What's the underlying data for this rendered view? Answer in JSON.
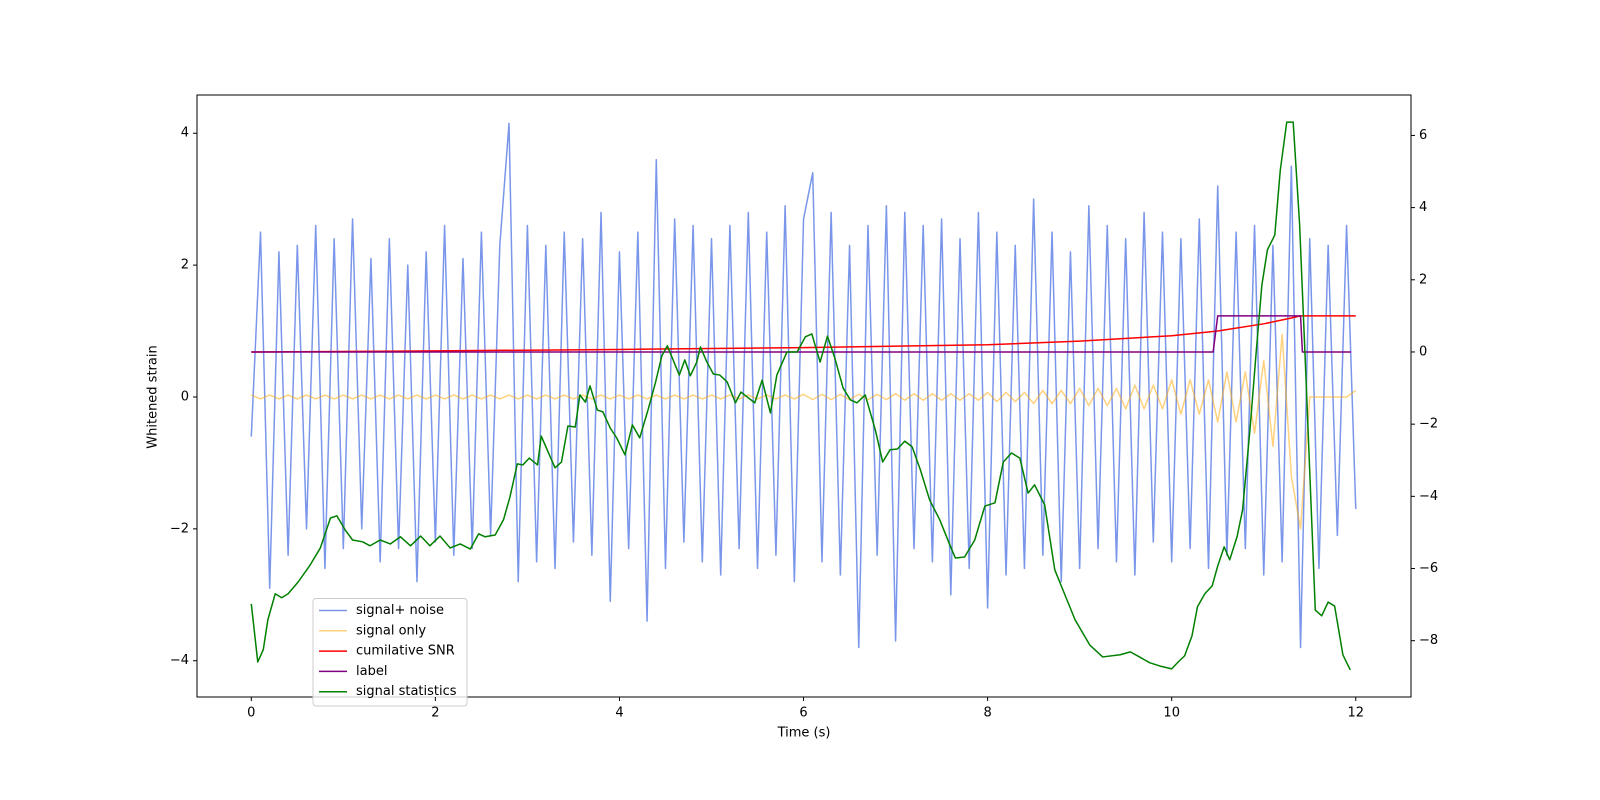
{
  "chart_data": {
    "type": "line",
    "xlabel": "Time (s)",
    "ylabel": "Whitened strain",
    "xlim": [
      -0.59,
      12.6
    ],
    "ylim": [
      -4.55,
      4.58
    ],
    "y2lim": [
      -9.56,
      7.12
    ],
    "xticks": [
      0,
      2,
      4,
      6,
      8,
      10,
      12
    ],
    "yticks": [
      {
        "value": -4,
        "label": "−4"
      },
      {
        "value": -2,
        "label": "−2"
      },
      0,
      2,
      4
    ],
    "y2ticks": [
      {
        "value": -8,
        "label": "−8"
      },
      {
        "value": -6,
        "label": "−6"
      },
      {
        "value": -4,
        "label": "−4"
      },
      {
        "value": -2,
        "label": "−2"
      },
      0,
      2,
      4,
      6
    ],
    "legend_loc": "lower left",
    "x": [
      0,
      0.1,
      0.2,
      0.3,
      0.4,
      0.5,
      0.6,
      0.7,
      0.8,
      0.9,
      1,
      1.1,
      1.2,
      1.3,
      1.4,
      1.5,
      1.6,
      1.7,
      1.8,
      1.9,
      2,
      2.1,
      2.2,
      2.3,
      2.4,
      2.5,
      2.6,
      2.7,
      2.8,
      2.9,
      3,
      3.1,
      3.2,
      3.3,
      3.4,
      3.5,
      3.6,
      3.7,
      3.8,
      3.9,
      4,
      4.1,
      4.2,
      4.3,
      4.4,
      4.5,
      4.6,
      4.7,
      4.8,
      4.9,
      5,
      5.1,
      5.2,
      5.3,
      5.4,
      5.5,
      5.6,
      5.7,
      5.8,
      5.9,
      6,
      6.1,
      6.2,
      6.3,
      6.4,
      6.5,
      6.6,
      6.7,
      6.8,
      6.9,
      7,
      7.1,
      7.2,
      7.3,
      7.4,
      7.5,
      7.6,
      7.7,
      7.8,
      7.9,
      8,
      8.1,
      8.2,
      8.3,
      8.4,
      8.5,
      8.6,
      8.7,
      8.8,
      8.9,
      9,
      9.1,
      9.2,
      9.3,
      9.4,
      9.5,
      9.6,
      9.7,
      9.8,
      9.9,
      10,
      10.1,
      10.2,
      10.3,
      10.4,
      10.5,
      10.6,
      10.7,
      10.8,
      10.9,
      11,
      11.1,
      11.2,
      11.3,
      11.4,
      11.5,
      11.6,
      11.7,
      11.8,
      11.9,
      12
    ],
    "series": [
      {
        "name": "signal+ noise",
        "color": "#4169e1",
        "alpha": 0.7,
        "width": 1.5,
        "values": [
          -0.6,
          2.5,
          -2.9,
          2.2,
          -2.4,
          2.3,
          -2.0,
          2.6,
          -2.6,
          2.4,
          -2.3,
          2.7,
          -2.0,
          2.1,
          -2.5,
          2.4,
          -2.3,
          2.0,
          -2.8,
          2.2,
          -2.2,
          2.6,
          -2.4,
          2.1,
          -2.3,
          2.5,
          -2.1,
          2.3,
          4.15,
          -2.8,
          2.6,
          -2.5,
          2.3,
          -2.6,
          2.5,
          -2.2,
          2.4,
          -2.4,
          2.8,
          -3.1,
          2.2,
          -2.3,
          2.5,
          -3.4,
          3.6,
          -2.6,
          2.7,
          -2.2,
          2.6,
          -2.5,
          2.4,
          -2.7,
          2.6,
          -2.3,
          2.8,
          -2.6,
          2.5,
          -2.4,
          2.9,
          -2.8,
          2.7,
          3.4,
          -2.5,
          2.8,
          -2.7,
          2.3,
          -3.8,
          2.6,
          -2.4,
          2.9,
          -3.7,
          2.8,
          -2.3,
          2.6,
          -2.5,
          2.7,
          -3.0,
          2.4,
          -2.6,
          2.8,
          -3.2,
          2.5,
          -2.7,
          2.3,
          -2.6,
          3.0,
          -2.4,
          2.5,
          -2.8,
          2.2,
          -2.6,
          2.9,
          -2.3,
          2.6,
          -2.5,
          2.4,
          -2.7,
          2.8,
          -2.2,
          2.5,
          -2.5,
          2.4,
          -2.3,
          2.7,
          -2.6,
          3.2,
          -2.4,
          2.5,
          -2.3,
          2.6,
          -2.7,
          2.3,
          -2.5,
          3.5,
          -3.8,
          2.4,
          -2.6,
          2.3,
          -2.1,
          2.6,
          -1.7
        ]
      },
      {
        "name": "signal only",
        "color": "#ffa500",
        "alpha": 0.5,
        "width": 1.5,
        "values": [
          0.03,
          -0.03,
          0.03,
          -0.03,
          0.03,
          -0.03,
          0.03,
          -0.03,
          0.03,
          -0.03,
          0.03,
          -0.03,
          0.03,
          -0.03,
          0.03,
          -0.03,
          0.03,
          -0.03,
          0.03,
          -0.03,
          0.03,
          -0.03,
          0.03,
          -0.03,
          0.03,
          -0.03,
          0.03,
          -0.03,
          0.03,
          -0.03,
          0.03,
          -0.03,
          0.03,
          -0.03,
          0.03,
          -0.03,
          0.03,
          -0.03,
          0.03,
          -0.03,
          0.03,
          -0.03,
          0.03,
          -0.03,
          0.03,
          -0.03,
          0.03,
          -0.03,
          0.03,
          -0.03,
          0.03,
          -0.03,
          0.03,
          -0.03,
          0.03,
          -0.03,
          0.03,
          -0.03,
          0.03,
          -0.03,
          0.04,
          -0.04,
          0.04,
          -0.04,
          0.04,
          -0.04,
          0.04,
          -0.04,
          0.04,
          -0.04,
          0.05,
          -0.05,
          0.05,
          -0.05,
          0.05,
          -0.05,
          0.05,
          -0.05,
          0.05,
          -0.05,
          0.07,
          -0.07,
          0.07,
          -0.07,
          0.07,
          -0.1,
          0.1,
          -0.1,
          0.1,
          -0.1,
          0.13,
          -0.13,
          0.13,
          -0.13,
          0.13,
          -0.18,
          0.18,
          -0.18,
          0.18,
          -0.18,
          0.26,
          -0.26,
          0.26,
          -0.26,
          0.26,
          -0.38,
          0.38,
          -0.38,
          0.38,
          -0.55,
          0.55,
          -0.75,
          0.95,
          -1.2,
          -2.0,
          0,
          0,
          0,
          0,
          0,
          0.1
        ]
      },
      {
        "name": "cumilative SNR",
        "color": "#ff0000",
        "alpha": 1,
        "width": 1.5,
        "axis": "y2",
        "x": [
          0,
          2,
          4,
          6,
          8,
          9,
          10,
          10.5,
          11,
          11.3,
          11.4,
          12
        ],
        "values": [
          0,
          0.03,
          0.07,
          0.12,
          0.2,
          0.3,
          0.45,
          0.58,
          0.78,
          0.94,
          1.0,
          1.0
        ]
      },
      {
        "name": "label",
        "color": "#800080",
        "alpha": 1,
        "width": 1.5,
        "axis": "y2",
        "x": [
          0,
          10.45,
          10.5,
          11.4,
          11.42,
          11.95
        ],
        "values": [
          0,
          0,
          1,
          1,
          0,
          0
        ]
      },
      {
        "name": "signal statistics",
        "color": "#008000",
        "alpha": 1,
        "width": 1.5,
        "axis": "y2",
        "x": [
          0,
          0.07,
          0.13,
          0.18,
          0.26,
          0.33,
          0.4,
          0.51,
          0.64,
          0.75,
          0.86,
          0.93,
          1.02,
          1.1,
          1.21,
          1.29,
          1.4,
          1.51,
          1.62,
          1.73,
          1.84,
          1.94,
          2.05,
          2.16,
          2.27,
          2.38,
          2.47,
          2.54,
          2.65,
          2.74,
          2.81,
          2.89,
          2.95,
          3.02,
          3.11,
          3.15,
          3.23,
          3.3,
          3.37,
          3.44,
          3.52,
          3.57,
          3.63,
          3.68,
          3.76,
          3.82,
          3.9,
          3.97,
          4.06,
          4.14,
          4.22,
          4.31,
          4.39,
          4.46,
          4.52,
          4.57,
          4.65,
          4.71,
          4.77,
          4.84,
          4.88,
          4.95,
          5.02,
          5.09,
          5.17,
          5.26,
          5.32,
          5.4,
          5.47,
          5.55,
          5.64,
          5.71,
          5.82,
          5.93,
          6.02,
          6.09,
          6.18,
          6.26,
          6.34,
          6.43,
          6.51,
          6.58,
          6.67,
          6.78,
          6.86,
          6.94,
          7.02,
          7.1,
          7.18,
          7.27,
          7.37,
          7.48,
          7.59,
          7.65,
          7.75,
          7.86,
          7.97,
          8.08,
          8.17,
          8.26,
          8.35,
          8.44,
          8.51,
          8.62,
          8.73,
          8.84,
          8.95,
          9.11,
          9.25,
          9.44,
          9.55,
          9.65,
          9.76,
          9.87,
          10.0,
          10.07,
          10.14,
          10.22,
          10.28,
          10.36,
          10.44,
          10.5,
          10.57,
          10.63,
          10.71,
          10.77,
          10.85,
          10.92,
          10.98,
          11.04,
          11.12,
          11.18,
          11.25,
          11.32,
          11.39,
          11.46,
          11.56,
          11.63,
          11.7,
          11.77,
          11.86,
          11.94
        ],
        "values": [
          -6.98,
          -8.59,
          -8.25,
          -7.42,
          -6.7,
          -6.81,
          -6.7,
          -6.37,
          -5.9,
          -5.43,
          -4.6,
          -4.54,
          -4.93,
          -5.21,
          -5.26,
          -5.37,
          -5.21,
          -5.32,
          -5.12,
          -5.37,
          -5.1,
          -5.37,
          -5.1,
          -5.43,
          -5.32,
          -5.46,
          -5.04,
          -5.12,
          -5.07,
          -4.65,
          -4.02,
          -3.1,
          -3.13,
          -2.94,
          -3.13,
          -2.33,
          -2.8,
          -3.21,
          -3.05,
          -2.05,
          -2.08,
          -1.19,
          -1.39,
          -0.94,
          -1.61,
          -1.66,
          -2.11,
          -2.38,
          -2.85,
          -2.02,
          -2.38,
          -1.61,
          -0.86,
          -0.11,
          0.17,
          -0.14,
          -0.64,
          -0.22,
          -0.66,
          -0.28,
          0.14,
          -0.28,
          -0.61,
          -0.64,
          -0.83,
          -1.41,
          -1.11,
          -1.27,
          -1.41,
          -0.78,
          -1.69,
          -0.64,
          0,
          0,
          0.42,
          0.5,
          -0.28,
          0.44,
          -0.17,
          -1.0,
          -1.33,
          -1.41,
          -1.19,
          -2.16,
          -3.05,
          -2.71,
          -2.69,
          -2.47,
          -2.63,
          -3.27,
          -4.1,
          -4.65,
          -5.35,
          -5.71,
          -5.68,
          -5.21,
          -4.27,
          -4.18,
          -3.05,
          -2.8,
          -2.94,
          -3.91,
          -3.68,
          -4.24,
          -6.04,
          -6.73,
          -7.42,
          -8.12,
          -8.45,
          -8.39,
          -8.31,
          -8.45,
          -8.61,
          -8.7,
          -8.78,
          -8.59,
          -8.42,
          -7.87,
          -7.06,
          -6.7,
          -6.48,
          -5.93,
          -5.4,
          -5.76,
          -5.12,
          -4.38,
          -2.16,
          0.06,
          1.86,
          2.83,
          3.24,
          5.04,
          6.37,
          6.37,
          3.52,
          -0.78,
          -7.15,
          -7.31,
          -6.93,
          -7.04,
          -8.39,
          -8.81
        ]
      }
    ]
  }
}
